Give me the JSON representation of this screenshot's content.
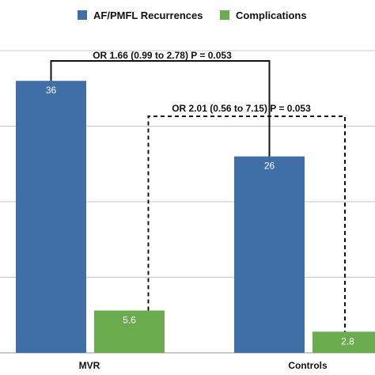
{
  "chart_data": {
    "type": "bar",
    "categories": [
      "MVR",
      "Controls"
    ],
    "series": [
      {
        "name": "AF/PMFL Recurrences",
        "values": [
          36,
          26
        ],
        "color": "#3f6fa6"
      },
      {
        "name": "Complications",
        "values": [
          5.6,
          2.8
        ],
        "color": "#6aac4e"
      }
    ],
    "ylim": [
      0,
      40
    ],
    "grid": true,
    "legend": "top",
    "annotations": [
      {
        "text": "OR 1.66 (0.99 to 2.78) P = 0.053",
        "series": "AF/PMFL Recurrences",
        "style": "solid"
      },
      {
        "text": "OR 2.01 (0.56 to 7.15) P = 0.053",
        "series": "Complications",
        "style": "dashed"
      }
    ]
  }
}
